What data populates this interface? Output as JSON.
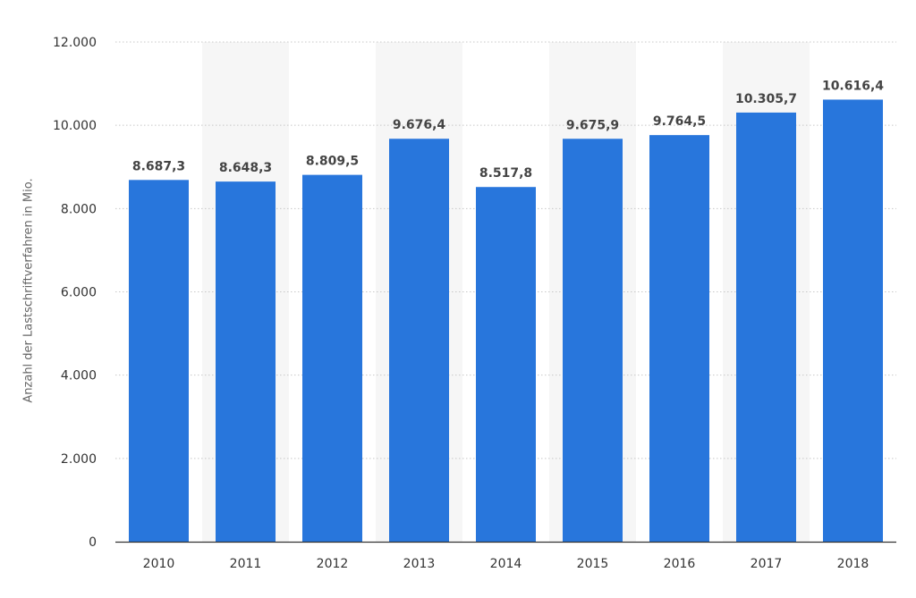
{
  "chart_data": {
    "type": "bar",
    "title": "",
    "xlabel": "",
    "ylabel": "Anzahl der Lastschriftverfahren in Mio.",
    "categories": [
      "2010",
      "2011",
      "2012",
      "2013",
      "2014",
      "2015",
      "2016",
      "2017",
      "2018"
    ],
    "values": [
      8687.3,
      8648.3,
      8809.5,
      9676.4,
      8517.8,
      9675.9,
      9764.5,
      10305.7,
      10616.4
    ],
    "value_labels": [
      "8.687,3",
      "8.648,3",
      "8.809,5",
      "9.676,4",
      "8.517,8",
      "9.675,9",
      "9.764,5",
      "10.305,7",
      "10.616,4"
    ],
    "ylim": [
      0,
      12000
    ],
    "yticks": [
      0,
      2000,
      4000,
      6000,
      8000,
      10000,
      12000
    ],
    "ytick_labels": [
      "0",
      "2.000",
      "4.000",
      "6.000",
      "8.000",
      "10.000",
      "12.000"
    ],
    "grid": true,
    "legend": "none",
    "colors": {
      "bar": "#2876dc",
      "band": "#f6f6f6",
      "grid": "#c8c8c8",
      "axis": "#333333",
      "tick_text": "#333333",
      "value_text": "#444444"
    }
  }
}
